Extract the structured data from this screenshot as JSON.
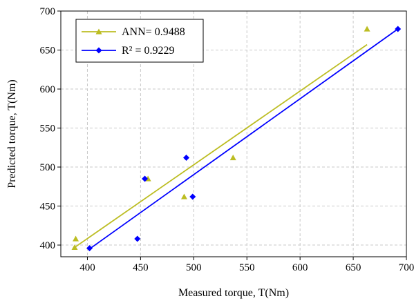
{
  "chart_data": {
    "type": "scatter",
    "title": "",
    "xlabel": "Measured torque, T(Nm)",
    "ylabel": "Predicted torque, T(Nm)",
    "xlim": [
      375,
      700
    ],
    "ylim": [
      385,
      700
    ],
    "xticks": [
      400,
      450,
      500,
      550,
      600,
      650,
      700
    ],
    "yticks": [
      400,
      450,
      500,
      550,
      600,
      650,
      700
    ],
    "grid": true,
    "legend_position": "top-left",
    "series": [
      {
        "name": "ANN= 0.9488",
        "color": "#bcbd22",
        "marker": "triangle",
        "points": [
          [
            388,
            397
          ],
          [
            389,
            408
          ],
          [
            457,
            485
          ],
          [
            491,
            462
          ],
          [
            537,
            512
          ],
          [
            663,
            677
          ]
        ],
        "fit_line": [
          [
            388,
            397
          ],
          [
            663,
            657
          ]
        ]
      },
      {
        "name": "R² = 0.9229",
        "color": "#0000ff",
        "marker": "diamond",
        "points": [
          [
            402,
            396
          ],
          [
            447,
            408
          ],
          [
            454,
            485
          ],
          [
            493,
            512
          ],
          [
            499,
            462
          ],
          [
            692,
            677
          ]
        ],
        "fit_line": [
          [
            402,
            395
          ],
          [
            692,
            677
          ]
        ]
      }
    ]
  }
}
